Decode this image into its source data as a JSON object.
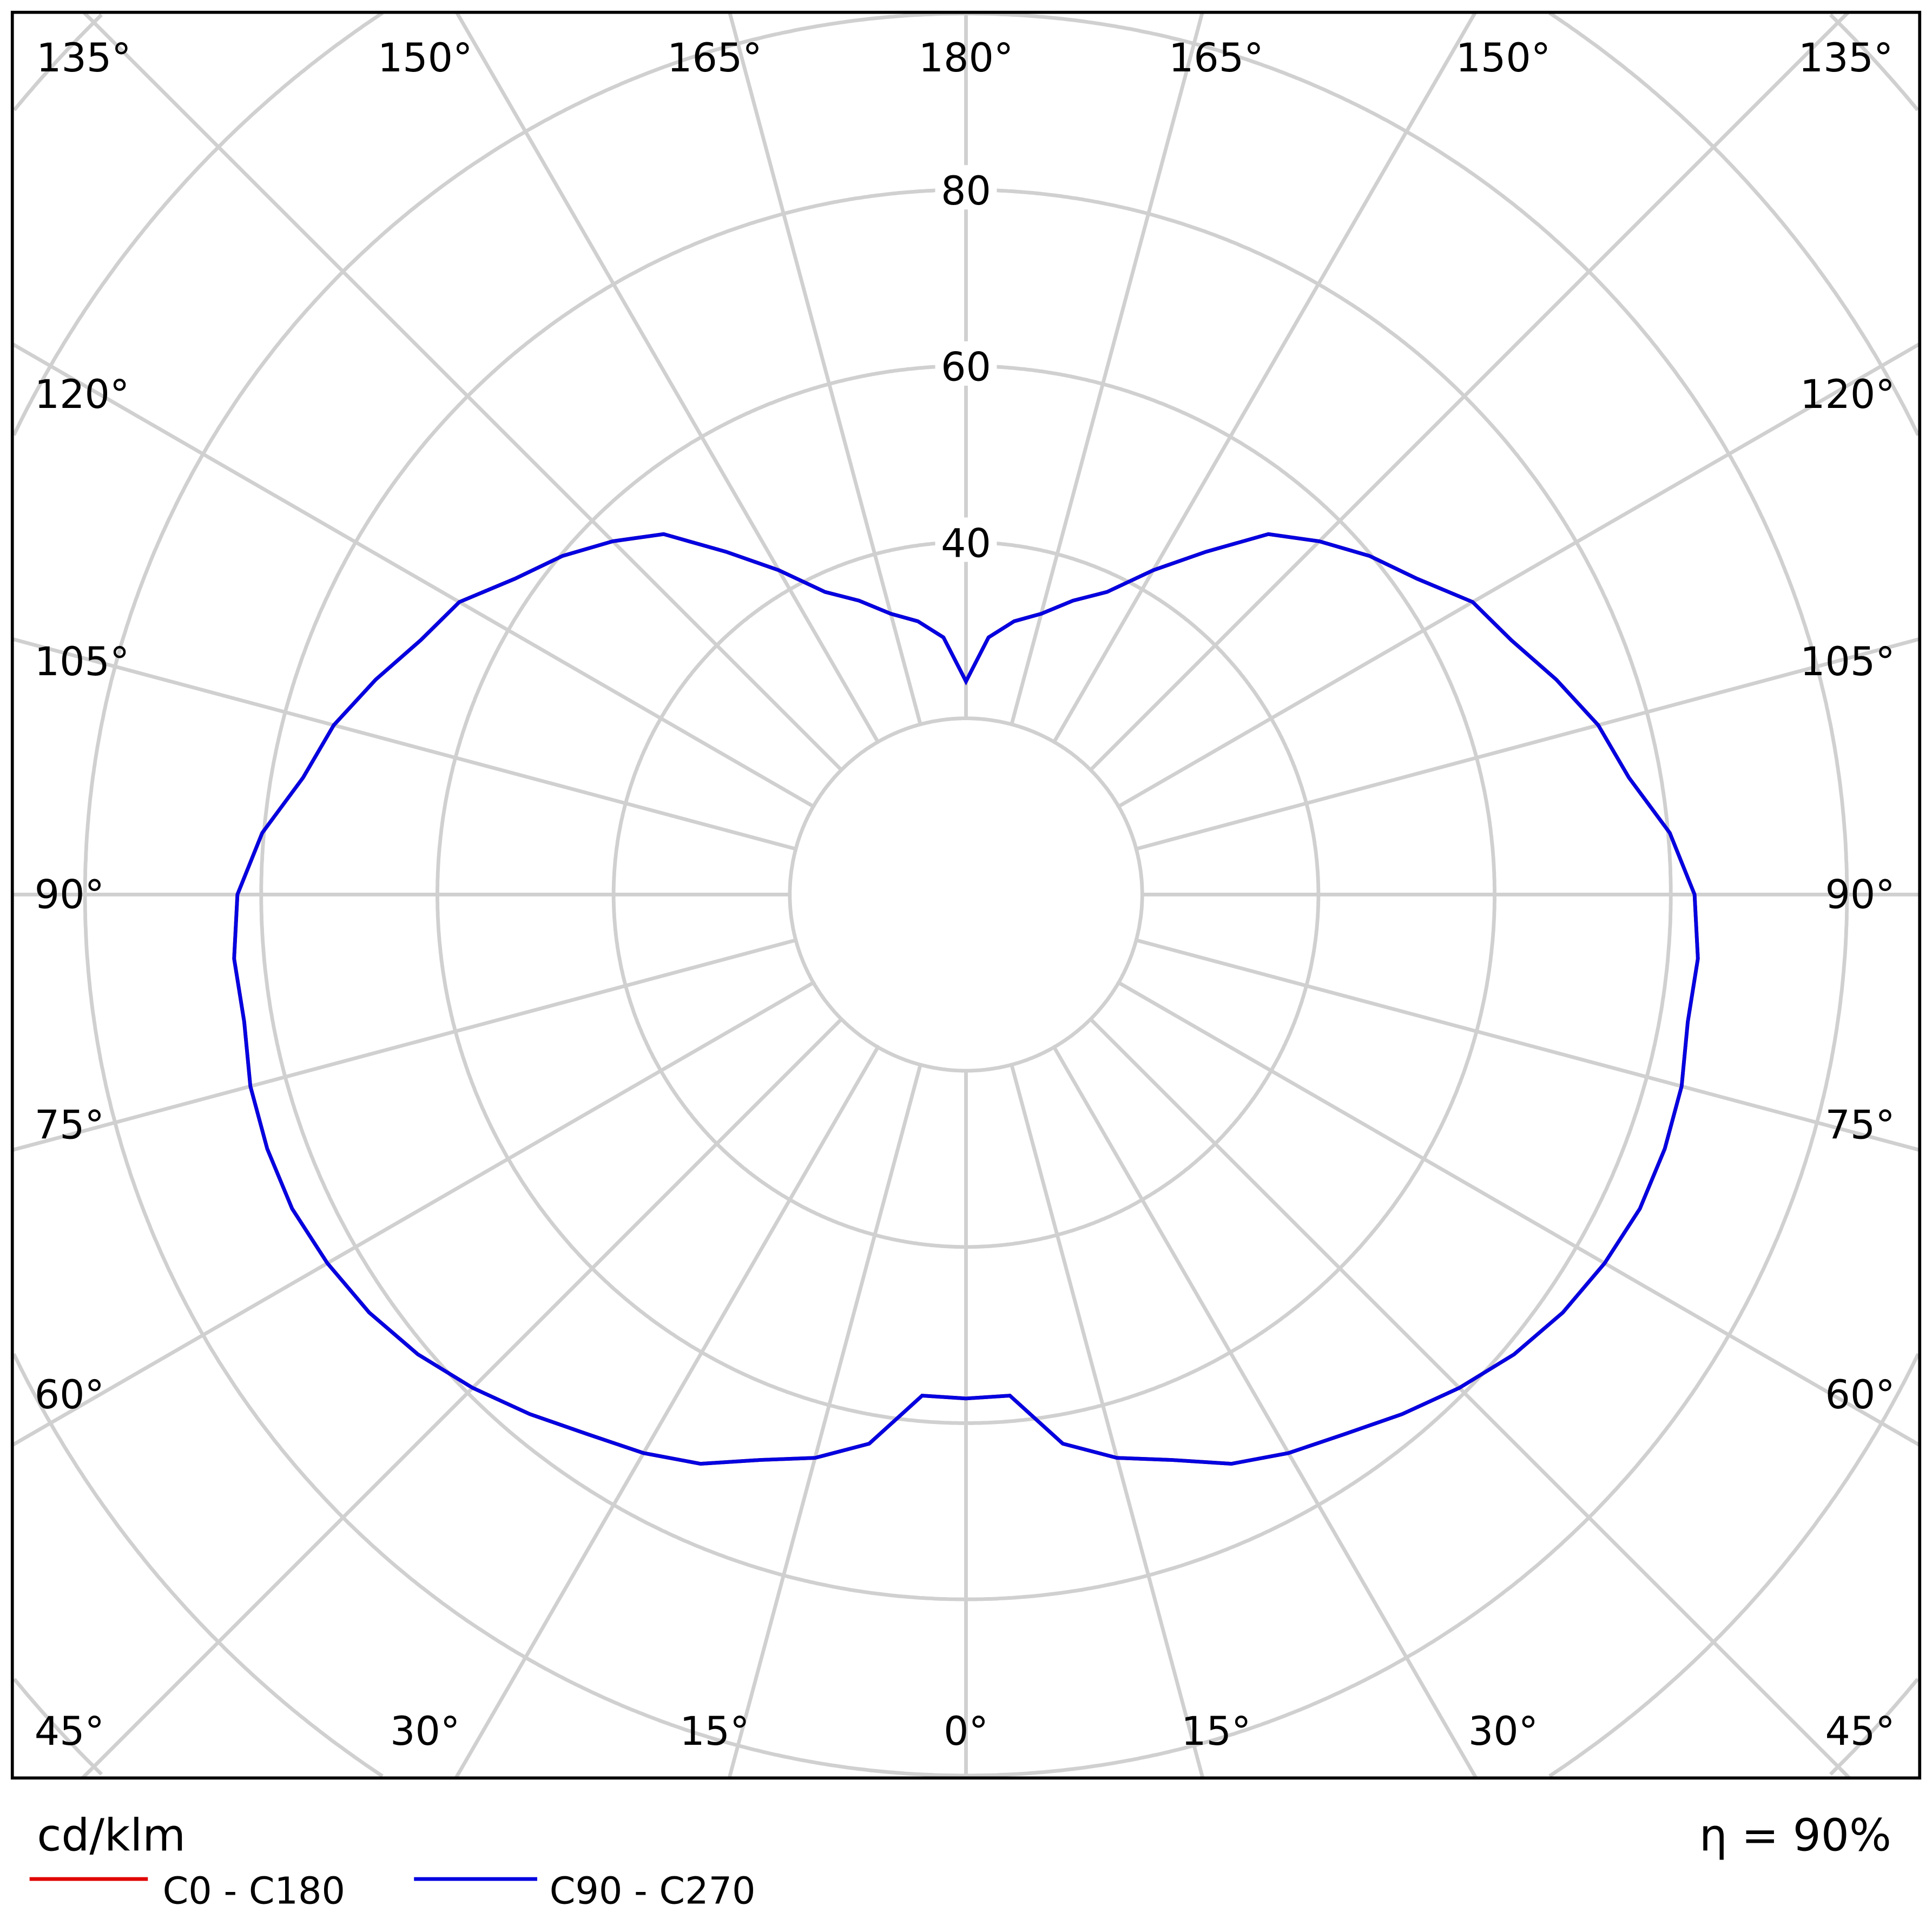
{
  "chart_data": {
    "type": "polar-line",
    "unit_label": "cd/klm",
    "efficiency_label": "η = 90%",
    "radial_ticks": [
      40,
      60,
      80
    ],
    "radial_grid_step": 20,
    "angle_labels": {
      "top": [
        "135°",
        "150°",
        "165°",
        "180°",
        "165°",
        "150°",
        "135°"
      ],
      "left": [
        "120°",
        "105°",
        "90°",
        "75°",
        "60°",
        "45°"
      ],
      "right": [
        "120°",
        "105°",
        "90°",
        "75°",
        "60°",
        "45°"
      ],
      "bottom": [
        "30°",
        "15°",
        "0°",
        "15°",
        "30°"
      ]
    },
    "gamma": [
      0,
      5,
      10,
      15,
      20,
      25,
      30,
      35,
      40,
      45,
      50,
      55,
      60,
      65,
      70,
      75,
      80,
      85,
      90,
      95,
      100,
      105,
      110,
      115,
      120,
      125,
      130,
      135,
      140,
      145,
      150,
      155,
      160,
      165,
      170,
      175,
      180
    ],
    "series": [
      {
        "name": "C0 - C180",
        "color": "#e00000",
        "values": [
          57.2,
          57.1,
          63.3,
          66.2,
          68.3,
          71.3,
          73.2,
          74.8,
          77,
          79.2,
          81.2,
          82.7,
          83.7,
          84.4,
          84.4,
          84.1,
          83.2,
          83.4,
          82.7,
          80.2,
          76.4,
          74.3,
          71.3,
          68.3,
          66.4,
          62.5,
          59.8,
          56.7,
          53.4,
          47.5,
          42.5,
          37.9,
          35.5,
          33,
          31.5,
          29.3,
          24.2
        ]
      },
      {
        "name": "C90 - C270",
        "color": "#0000e0",
        "values": [
          57.2,
          57.1,
          63.3,
          66.2,
          68.3,
          71.3,
          73.2,
          74.8,
          77,
          79.2,
          81.2,
          82.7,
          83.7,
          84.4,
          84.4,
          84.1,
          83.2,
          83.4,
          82.7,
          80.2,
          76.4,
          74.3,
          71.3,
          68.3,
          66.4,
          62.5,
          59.8,
          56.7,
          53.4,
          47.5,
          42.5,
          37.9,
          35.5,
          33,
          31.5,
          29.3,
          24.2
        ]
      }
    ],
    "grid": true,
    "legend_position": "bottom-left"
  }
}
